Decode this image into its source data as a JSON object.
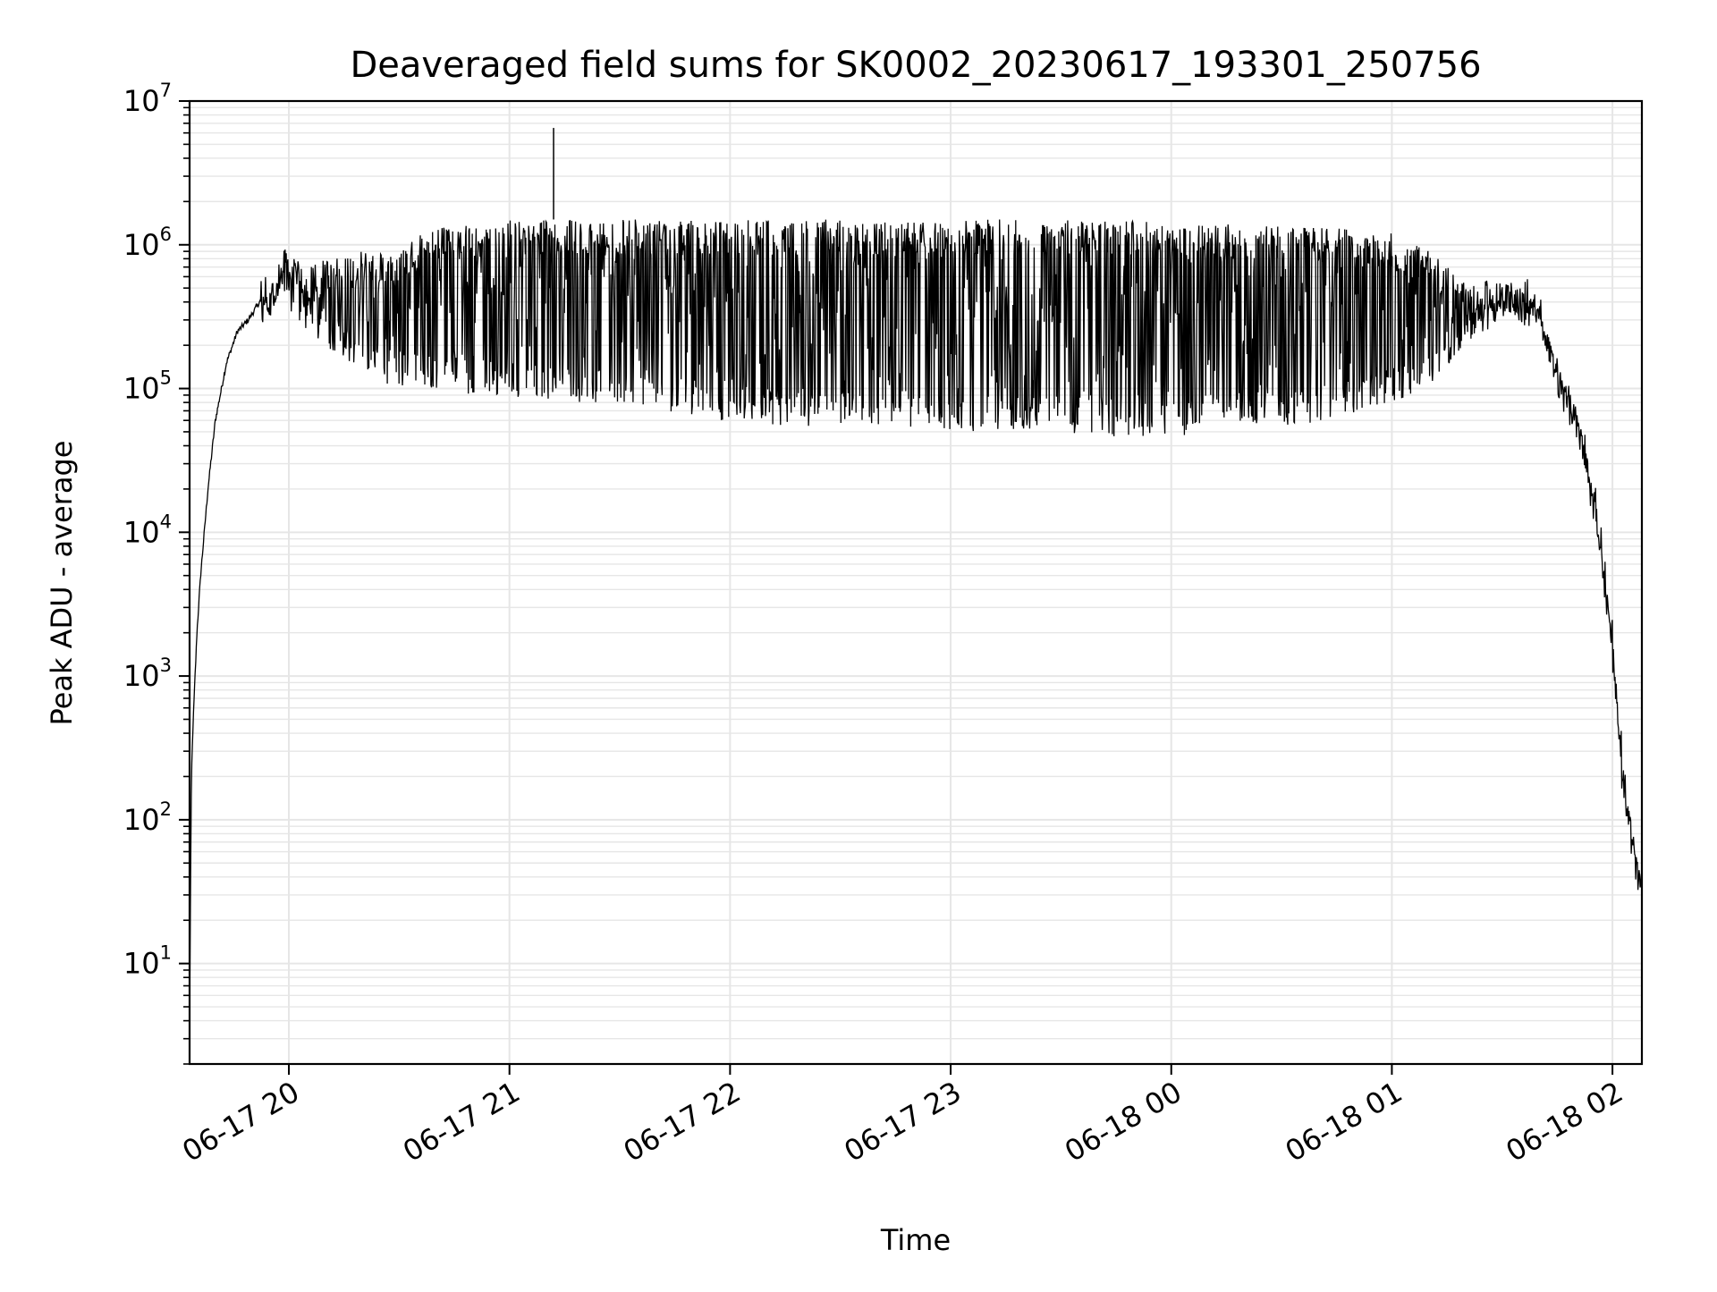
{
  "chart_data": {
    "type": "line",
    "title": "Deaveraged field sums for SK0002_20230617_193301_250756",
    "xlabel": "Time",
    "ylabel": "Peak ADU - average",
    "yscale": "log",
    "ylim": [
      2.0,
      10000000
    ],
    "xlim": [
      "2023-06-17 19:33:00",
      "2023-06-18 02:08:00"
    ],
    "x_tick_labels": [
      "06-17 20",
      "06-17 21",
      "06-17 22",
      "06-17 23",
      "06-18 00",
      "06-18 01",
      "06-18 02"
    ],
    "x_ticks": [
      "2023-06-17 20:00",
      "2023-06-17 21:00",
      "2023-06-17 22:00",
      "2023-06-17 23:00",
      "2023-06-18 00:00",
      "2023-06-18 01:00",
      "2023-06-18 02:00"
    ],
    "y_tick_base": "10",
    "y_tick_exponents": [
      "1",
      "2",
      "3",
      "4",
      "5",
      "6",
      "7"
    ],
    "y_ticks": [
      10,
      100,
      1000,
      10000,
      100000,
      1000000,
      10000000
    ],
    "grid": true,
    "line_color": "#000000",
    "grid_color": "#e6e6e6",
    "series": [
      {
        "envelope": true,
        "x": [
          "2023-06-17 19:33:00",
          "2023-06-17 19:33:30",
          "2023-06-17 19:34:00",
          "2023-06-17 19:35:00",
          "2023-06-17 19:36:00",
          "2023-06-17 19:38:00",
          "2023-06-17 19:40:00",
          "2023-06-17 19:43:00",
          "2023-06-17 19:46:00",
          "2023-06-17 19:49:00",
          "2023-06-17 19:52:00",
          "2023-06-17 19:55:00",
          "2023-06-17 19:58:00",
          "2023-06-17 20:00:00",
          "2023-06-17 20:05:00",
          "2023-06-17 20:10:00",
          "2023-06-17 20:20:00",
          "2023-06-17 20:30:00",
          "2023-06-17 20:40:00",
          "2023-06-17 20:50:00",
          "2023-06-17 21:00:00",
          "2023-06-17 21:10:00",
          "2023-06-17 21:20:00",
          "2023-06-17 21:30:00",
          "2023-06-17 21:40:00",
          "2023-06-17 21:50:00",
          "2023-06-17 22:00:00",
          "2023-06-17 22:15:00",
          "2023-06-17 22:30:00",
          "2023-06-17 22:45:00",
          "2023-06-17 23:00:00",
          "2023-06-17 23:15:00",
          "2023-06-17 23:30:00",
          "2023-06-17 23:45:00",
          "2023-06-18 00:00:00",
          "2023-06-18 00:15:00",
          "2023-06-18 00:30:00",
          "2023-06-18 00:45:00",
          "2023-06-18 01:00:00",
          "2023-06-18 01:10:00",
          "2023-06-18 01:20:00",
          "2023-06-18 01:30:00",
          "2023-06-18 01:35:00",
          "2023-06-18 01:40:00",
          "2023-06-18 01:45:00",
          "2023-06-18 01:50:00",
          "2023-06-18 01:55:00",
          "2023-06-18 02:00:00",
          "2023-06-18 02:03:00",
          "2023-06-18 02:05:00",
          "2023-06-18 02:07:00",
          "2023-06-18 02:08:00"
        ],
        "upper": [
          4,
          200,
          500,
          2000,
          5000,
          20000,
          60000,
          150000,
          250000,
          300000,
          400000,
          500000,
          900000,
          1000000,
          700000,
          800000,
          900000,
          1000000,
          1300000,
          1400000,
          1500000,
          1500000,
          1500000,
          1500000,
          1500000,
          1500000,
          1500000,
          1500000,
          1500000,
          1500000,
          1500000,
          1500000,
          1500000,
          1500000,
          1400000,
          1400000,
          1400000,
          1300000,
          1200000,
          900000,
          600000,
          550000,
          500000,
          400000,
          150000,
          80000,
          20000,
          2000,
          200,
          100,
          50,
          40
        ],
        "lower": [
          4,
          200,
          500,
          2000,
          5000,
          20000,
          60000,
          150000,
          250000,
          300000,
          400000,
          300000,
          400000,
          350000,
          250000,
          200000,
          120000,
          100000,
          100000,
          90000,
          90000,
          80000,
          80000,
          70000,
          65000,
          60000,
          60000,
          55000,
          55000,
          55000,
          50000,
          50000,
          50000,
          45000,
          45000,
          55000,
          55000,
          60000,
          80000,
          100000,
          200000,
          300000,
          350000,
          300000,
          90000,
          50000,
          15000,
          1500,
          150,
          80,
          40,
          35
        ]
      }
    ],
    "annotations": [
      {
        "x": "2023-06-17 21:12:00",
        "y": 6500000,
        "text": ""
      }
    ]
  }
}
